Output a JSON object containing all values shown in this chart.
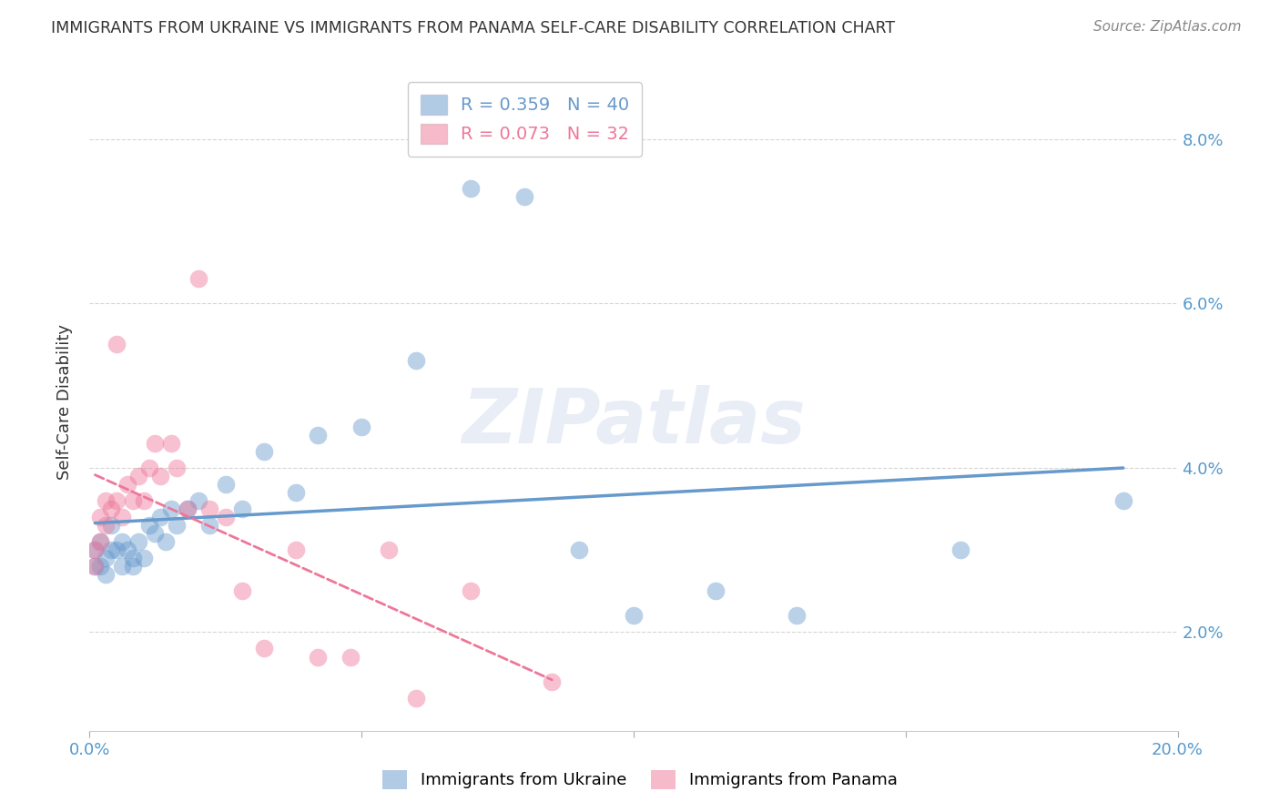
{
  "title": "IMMIGRANTS FROM UKRAINE VS IMMIGRANTS FROM PANAMA SELF-CARE DISABILITY CORRELATION CHART",
  "source": "Source: ZipAtlas.com",
  "ylabel": "Self-Care Disability",
  "xlim": [
    0.0,
    0.2
  ],
  "ylim": [
    0.008,
    0.088
  ],
  "yticks": [
    0.02,
    0.04,
    0.06,
    0.08
  ],
  "xticks": [
    0.0,
    0.05,
    0.1,
    0.15,
    0.2
  ],
  "x_major_labels": {
    "0.0": "0.0%",
    "0.20": "20.0%"
  },
  "ukraine_color": "#6699cc",
  "panama_color": "#ee7799",
  "ukraine_R": 0.359,
  "ukraine_N": 40,
  "panama_R": 0.073,
  "panama_N": 32,
  "ukraine_x": [
    0.001,
    0.001,
    0.002,
    0.002,
    0.003,
    0.003,
    0.004,
    0.004,
    0.005,
    0.006,
    0.006,
    0.007,
    0.008,
    0.008,
    0.009,
    0.01,
    0.011,
    0.012,
    0.013,
    0.014,
    0.015,
    0.016,
    0.018,
    0.02,
    0.022,
    0.025,
    0.028,
    0.032,
    0.038,
    0.042,
    0.05,
    0.06,
    0.07,
    0.08,
    0.09,
    0.1,
    0.115,
    0.13,
    0.16,
    0.19
  ],
  "ukraine_y": [
    0.03,
    0.028,
    0.031,
    0.028,
    0.029,
    0.027,
    0.03,
    0.033,
    0.03,
    0.028,
    0.031,
    0.03,
    0.029,
    0.028,
    0.031,
    0.029,
    0.033,
    0.032,
    0.034,
    0.031,
    0.035,
    0.033,
    0.035,
    0.036,
    0.033,
    0.038,
    0.035,
    0.042,
    0.037,
    0.044,
    0.045,
    0.053,
    0.074,
    0.073,
    0.03,
    0.022,
    0.025,
    0.022,
    0.03,
    0.036
  ],
  "panama_x": [
    0.001,
    0.001,
    0.002,
    0.002,
    0.003,
    0.003,
    0.004,
    0.005,
    0.005,
    0.006,
    0.007,
    0.008,
    0.009,
    0.01,
    0.011,
    0.012,
    0.013,
    0.015,
    0.016,
    0.018,
    0.02,
    0.022,
    0.025,
    0.028,
    0.032,
    0.038,
    0.042,
    0.048,
    0.055,
    0.06,
    0.07,
    0.085
  ],
  "panama_y": [
    0.03,
    0.028,
    0.034,
    0.031,
    0.033,
    0.036,
    0.035,
    0.055,
    0.036,
    0.034,
    0.038,
    0.036,
    0.039,
    0.036,
    0.04,
    0.043,
    0.039,
    0.043,
    0.04,
    0.035,
    0.063,
    0.035,
    0.034,
    0.025,
    0.018,
    0.03,
    0.017,
    0.017,
    0.03,
    0.012,
    0.025,
    0.014
  ],
  "background_color": "#ffffff",
  "grid_color": "#cccccc",
  "title_color": "#333333",
  "axis_color": "#5599cc",
  "watermark_text": "ZIPatlas",
  "watermark_color": "#aabbdd",
  "watermark_alpha": 0.25
}
